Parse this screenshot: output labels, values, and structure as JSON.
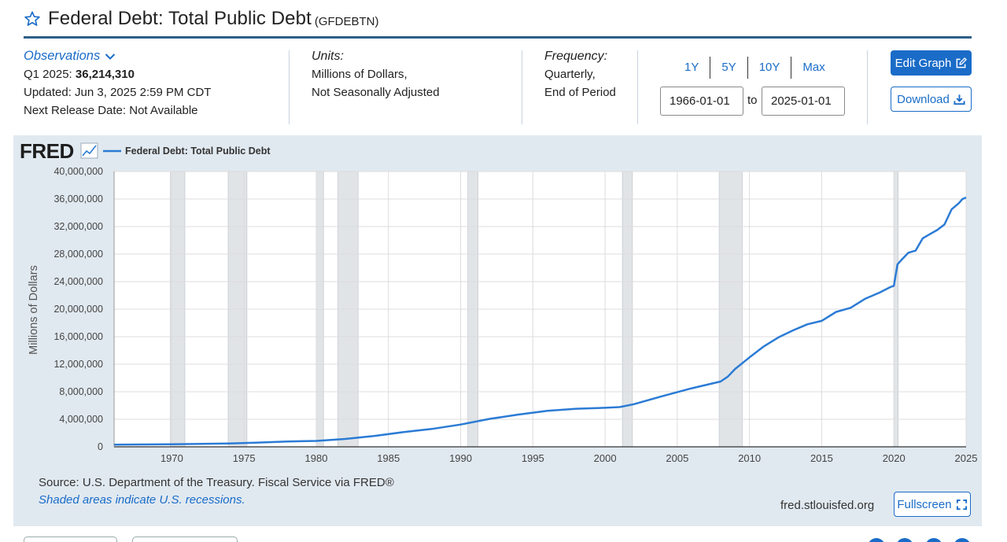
{
  "header": {
    "title": "Federal Debt: Total Public Debt",
    "series_id": "(GFDEBTN)"
  },
  "observations": {
    "link_label": "Observations",
    "period_label": "Q1 2025:",
    "value": "36,214,310",
    "updated": "Updated: Jun 3, 2025 2:59 PM CDT",
    "next_release": "Next Release Date: Not Available"
  },
  "units": {
    "label": "Units:",
    "line1": "Millions of Dollars,",
    "line2": "Not Seasonally Adjusted"
  },
  "frequency": {
    "label": "Frequency:",
    "line1": "Quarterly,",
    "line2": "End of Period"
  },
  "range": {
    "buttons": [
      "1Y",
      "5Y",
      "10Y",
      "Max"
    ],
    "start": "1966-01-01",
    "to_label": "to",
    "end": "2025-01-01"
  },
  "actions": {
    "edit_label": "Edit Graph",
    "download_label": "Download",
    "fullscreen_label": "Fullscreen"
  },
  "footer": {
    "source": "Source: U.S. Department of the Treasury. Fiscal Service via FRED®",
    "shaded_note": "Shaded areas indicate U.S. recessions.",
    "site": "fred.stlouisfed.org"
  },
  "colors": {
    "accent": "#1a6cc8",
    "line": "#2b7bd5",
    "panel": "#e1e9f0",
    "recession": "#e1e4e7"
  },
  "chart_data": {
    "type": "line",
    "title": "Federal Debt: Total Public Debt",
    "logo_text": "FRED",
    "legend": [
      "Federal Debt: Total Public Debt"
    ],
    "xlabel": "",
    "ylabel": "Millions of Dollars",
    "xlim": [
      1966,
      2025
    ],
    "ylim": [
      0,
      40000000
    ],
    "x_ticks": [
      1970,
      1975,
      1980,
      1985,
      1990,
      1995,
      2000,
      2005,
      2010,
      2015,
      2020,
      2025
    ],
    "y_ticks": [
      0,
      4000000,
      8000000,
      12000000,
      16000000,
      20000000,
      24000000,
      28000000,
      32000000,
      36000000,
      40000000
    ],
    "y_tick_labels": [
      "0",
      "4,000,000",
      "8,000,000",
      "12,000,000",
      "16,000,000",
      "20,000,000",
      "24,000,000",
      "28,000,000",
      "32,000,000",
      "36,000,000",
      "40,000,000"
    ],
    "recessions": [
      [
        1969.9,
        1970.9
      ],
      [
        1973.9,
        1975.2
      ],
      [
        1980.0,
        1980.5
      ],
      [
        1981.5,
        1982.9
      ],
      [
        1990.5,
        1991.2
      ],
      [
        2001.2,
        2001.9
      ],
      [
        2007.9,
        2009.5
      ],
      [
        2020.0,
        2020.3
      ]
    ],
    "series": [
      {
        "name": "Federal Debt: Total Public Debt",
        "x": [
          1966,
          1968,
          1970,
          1972,
          1974,
          1976,
          1978,
          1980,
          1982,
          1984,
          1986,
          1988,
          1990,
          1992,
          1994,
          1996,
          1998,
          2000,
          2001,
          2002,
          2004,
          2006,
          2008,
          2008.5,
          2009,
          2010,
          2011,
          2012,
          2013,
          2014,
          2015,
          2016,
          2017,
          2018,
          2019,
          2019.75,
          2020.0,
          2020.25,
          2020.5,
          2021,
          2021.5,
          2022,
          2022.5,
          2023,
          2023.5,
          2024,
          2024.5,
          2024.75,
          2025
        ],
        "values": [
          320000,
          345000,
          380000,
          430000,
          480000,
          620000,
          780000,
          860000,
          1140000,
          1570000,
          2120000,
          2600000,
          3230000,
          4060000,
          4690000,
          5220000,
          5530000,
          5670000,
          5770000,
          6200000,
          7380000,
          8500000,
          9490000,
          10200000,
          11300000,
          13000000,
          14600000,
          15900000,
          16900000,
          17800000,
          18300000,
          19600000,
          20200000,
          21500000,
          22400000,
          23200000,
          23400000,
          26500000,
          27100000,
          28200000,
          28500000,
          30300000,
          30900000,
          31500000,
          32300000,
          34500000,
          35400000,
          36000000,
          36214310
        ]
      }
    ]
  }
}
